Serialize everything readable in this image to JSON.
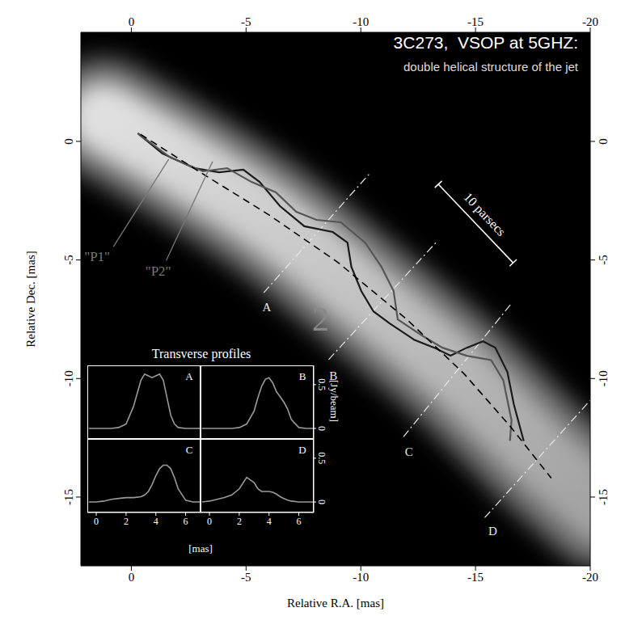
{
  "chart_data": {
    "type": "line",
    "title": "3C273,  VSOP at 5GHZ:",
    "subtitle": "double helical structure of the jet",
    "x_label": "Relative R.A. [mas]",
    "y_label": "Relative Dec. [mas]",
    "xlim": [
      2.2,
      -20
    ],
    "ylim": [
      -17.9,
      4.6
    ],
    "xticks": [
      0,
      -5,
      -10,
      -15,
      -20
    ],
    "yticks": [
      0,
      -5,
      -10,
      -15
    ],
    "emission": {
      "x": [
        1.2,
        -2,
        -6,
        -10,
        -14,
        -18.5,
        -20.5
      ],
      "y": [
        1.0,
        -0.8,
        -3.3,
        -6.4,
        -9.6,
        -13.8,
        -15.5
      ],
      "color": "#e0e0e0"
    },
    "series": [
      {
        "name": "\"P1\"",
        "color": "#1a1a1a",
        "line_style": "solid",
        "x": [
          -0.28,
          -1.35,
          -2.76,
          -3.82,
          -4.88,
          -5.59,
          -6.48,
          -7.54,
          -8.78,
          -9.42,
          -9.59,
          -10.02,
          -10.55,
          -11.26,
          -12.32,
          -13.2,
          -13.91,
          -14.62,
          -15.33,
          -15.86,
          -16.39,
          -16.67,
          -17.1
        ],
        "values": [
          0.34,
          -0.51,
          -1.13,
          -1.3,
          -1.19,
          -1.71,
          -2.73,
          -3.58,
          -3.82,
          -4.27,
          -5.29,
          -6.31,
          -7.17,
          -7.68,
          -8.36,
          -8.7,
          -9.04,
          -8.7,
          -8.43,
          -8.7,
          -9.73,
          -11.09,
          -12.63
        ]
      },
      {
        "name": "\"P2\"",
        "color": "#555555",
        "line_style": "solid",
        "x": [
          -0.28,
          -1.7,
          -3.12,
          -4.18,
          -5.24,
          -6.3,
          -7.19,
          -8.07,
          -9.13,
          -10.19,
          -10.9,
          -11.43,
          -11.61,
          -12.14,
          -12.67,
          -13.56,
          -14.62,
          -15.68,
          -16.21,
          -16.57,
          -16.5
        ],
        "values": [
          0.34,
          -0.68,
          -1.26,
          -1.13,
          -1.71,
          -2.15,
          -2.97,
          -3.31,
          -3.41,
          -4.27,
          -5.29,
          -6.31,
          -7.51,
          -7.85,
          -8.19,
          -8.7,
          -9.04,
          -9.22,
          -10.07,
          -11.77,
          -12.63
        ]
      },
      {
        "color": "#000000",
        "line_style": "dashed",
        "x": [
          -0.4,
          -3,
          -6,
          -9,
          -12,
          -14.5,
          -16.5,
          -18.3
        ],
        "values": [
          0.3,
          -1.3,
          -3.1,
          -5.1,
          -7.5,
          -9.8,
          -12.0,
          -14.2
        ]
      }
    ],
    "annotations": [
      {
        "text": "\"P1\"",
        "x": 1.49,
        "y": -4.85,
        "color": "#777777",
        "pointer_x": [
          0.78,
          -1.63
        ],
        "pointer_y": [
          -4.44,
          -0.75
        ]
      },
      {
        "text": "\"P2\"",
        "x": -1.17,
        "y": -5.46,
        "color": "#777777",
        "pointer_x": [
          -1.52,
          -3.54
        ],
        "pointer_y": [
          -5.02,
          -0.85
        ]
      },
      {
        "text": "2",
        "x": -8.25,
        "y": -7.5,
        "color": "#888888"
      }
    ],
    "cuts": {
      "color": "#e8e8e8",
      "line_style": "dashdot",
      "lines": [
        {
          "label": "A",
          "x": [
            -5.77,
            -10.37
          ],
          "y": [
            -6.38,
            -1.37
          ],
          "label_x": -5.9,
          "label_y": -7.0
        },
        {
          "label": "B",
          "x": [
            -8.6,
            -13.27
          ],
          "y": [
            -9.2,
            -4.27
          ],
          "label_x": -8.8,
          "label_y": -9.9
        },
        {
          "label": "C",
          "x": [
            -11.86,
            -16.57
          ],
          "y": [
            -12.46,
            -6.83
          ],
          "label_x": -12.1,
          "label_y": -13.1
        },
        {
          "label": "D",
          "x": [
            -15.4,
            -20.0
          ],
          "y": [
            -15.87,
            -10.92
          ],
          "label_x": -15.75,
          "label_y": -16.45
        }
      ]
    },
    "scale_bar": {
      "text": "10 parsecs",
      "x": [
        -13.38,
        -16.64
      ],
      "y": [
        -1.81,
        -5.12
      ],
      "label_x": -15.4,
      "label_y": -3.07,
      "color": "#ffffff"
    },
    "profiles": {
      "title": "Transverse profiles",
      "x_label": "[mas]",
      "y_label": "[Jy/beam]",
      "xlim": [
        -0.6,
        7
      ],
      "ylim": [
        -0.12,
        0.72
      ],
      "xticks": [
        0,
        2,
        4,
        6
      ],
      "yticks": [
        0,
        0.5
      ],
      "color": "#9a9a9a",
      "x": [
        -0.5,
        0,
        0.5,
        1,
        1.5,
        2,
        2.5,
        3,
        3.25,
        3.5,
        3.75,
        4,
        4.25,
        4.5,
        4.75,
        5,
        5.25,
        5.5,
        6,
        6.5,
        7
      ],
      "panels": [
        {
          "label": "A",
          "values": [
            0,
            0,
            0,
            0,
            0.01,
            0.05,
            0.25,
            0.55,
            0.62,
            0.6,
            0.58,
            0.6,
            0.62,
            0.55,
            0.35,
            0.15,
            0.05,
            0.01,
            0,
            0,
            0
          ]
        },
        {
          "label": "B",
          "values": [
            0,
            0,
            0,
            0,
            0,
            0.01,
            0.05,
            0.2,
            0.35,
            0.48,
            0.56,
            0.58,
            0.52,
            0.42,
            0.36,
            0.3,
            0.22,
            0.1,
            0.01,
            0,
            0
          ]
        },
        {
          "label": "C",
          "values": [
            0,
            0,
            0.01,
            0.03,
            0.04,
            0.05,
            0.05,
            0.06,
            0.08,
            0.12,
            0.2,
            0.3,
            0.38,
            0.42,
            0.42,
            0.38,
            0.28,
            0.15,
            0.02,
            0,
            0
          ]
        },
        {
          "label": "D",
          "values": [
            0,
            0.01,
            0.03,
            0.05,
            0.08,
            0.15,
            0.28,
            0.22,
            0.15,
            0.12,
            0.12,
            0.12,
            0.11,
            0.09,
            0.06,
            0.04,
            0.02,
            0.01,
            0,
            0,
            0
          ]
        }
      ]
    }
  }
}
